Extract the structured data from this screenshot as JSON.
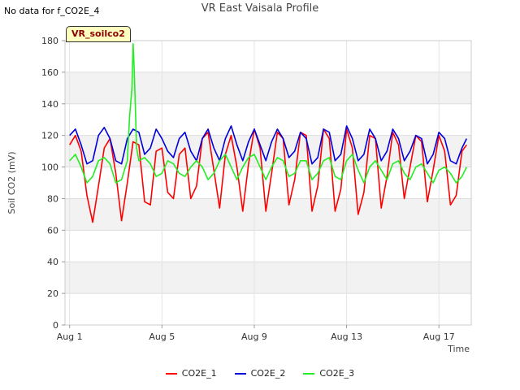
{
  "note": "No data for f_CO2E_4",
  "badge": "VR_soilco2",
  "chart_data": {
    "type": "line",
    "title": "VR East Vaisala Profile",
    "xlabel": "Time",
    "ylabel": "Soil CO2 (mV)",
    "xlim": [
      0.8,
      18.4
    ],
    "ylim": [
      0,
      180
    ],
    "yticks": [
      0,
      20,
      40,
      60,
      80,
      100,
      120,
      140,
      160,
      180
    ],
    "xticks": [
      1,
      5,
      9,
      13,
      17
    ],
    "xtick_labels": [
      "Aug 1",
      "Aug 5",
      "Aug 9",
      "Aug 13",
      "Aug 17"
    ],
    "x_unit": "day of August",
    "grid": true,
    "legend_position": "bottom",
    "series": [
      {
        "name": "CO2E_1",
        "color": "#ff0000",
        "x": [
          1.0,
          1.25,
          1.5,
          1.75,
          2.0,
          2.25,
          2.5,
          2.75,
          3.0,
          3.25,
          3.5,
          3.75,
          4.0,
          4.25,
          4.5,
          4.75,
          5.0,
          5.25,
          5.5,
          5.75,
          6.0,
          6.25,
          6.5,
          6.75,
          7.0,
          7.25,
          7.5,
          7.75,
          8.0,
          8.25,
          8.5,
          8.75,
          9.0,
          9.25,
          9.5,
          9.75,
          10.0,
          10.25,
          10.5,
          10.75,
          11.0,
          11.25,
          11.5,
          11.75,
          12.0,
          12.25,
          12.5,
          12.75,
          13.0,
          13.25,
          13.5,
          13.75,
          14.0,
          14.25,
          14.5,
          14.75,
          15.0,
          15.25,
          15.5,
          15.75,
          16.0,
          16.25,
          16.5,
          16.75,
          17.0,
          17.25,
          17.5,
          17.75,
          18.0,
          18.2
        ],
        "y": [
          114,
          120,
          110,
          82,
          65,
          88,
          112,
          118,
          96,
          66,
          90,
          116,
          114,
          78,
          76,
          110,
          112,
          84,
          80,
          108,
          112,
          80,
          88,
          118,
          122,
          98,
          74,
          108,
          120,
          100,
          72,
          102,
          124,
          112,
          72,
          96,
          122,
          118,
          76,
          92,
          122,
          120,
          72,
          88,
          124,
          118,
          72,
          86,
          124,
          112,
          70,
          84,
          120,
          118,
          74,
          94,
          122,
          114,
          80,
          100,
          120,
          116,
          78,
          98,
          120,
          110,
          76,
          82,
          110,
          114
        ]
      },
      {
        "name": "CO2E_2",
        "color": "#0000dd",
        "x": [
          1.0,
          1.25,
          1.5,
          1.75,
          2.0,
          2.25,
          2.5,
          2.75,
          3.0,
          3.25,
          3.5,
          3.75,
          4.0,
          4.25,
          4.5,
          4.75,
          5.0,
          5.25,
          5.5,
          5.75,
          6.0,
          6.25,
          6.5,
          6.75,
          7.0,
          7.25,
          7.5,
          7.75,
          8.0,
          8.25,
          8.5,
          8.75,
          9.0,
          9.25,
          9.5,
          9.75,
          10.0,
          10.25,
          10.5,
          10.75,
          11.0,
          11.25,
          11.5,
          11.75,
          12.0,
          12.25,
          12.5,
          12.75,
          13.0,
          13.25,
          13.5,
          13.75,
          14.0,
          14.25,
          14.5,
          14.75,
          15.0,
          15.25,
          15.5,
          15.75,
          16.0,
          16.25,
          16.5,
          16.75,
          17.0,
          17.25,
          17.5,
          17.75,
          18.0,
          18.2
        ],
        "y": [
          120,
          124,
          114,
          102,
          104,
          120,
          125,
          118,
          104,
          102,
          118,
          124,
          122,
          108,
          112,
          124,
          118,
          110,
          106,
          118,
          122,
          110,
          104,
          118,
          124,
          112,
          104,
          118,
          126,
          114,
          104,
          116,
          124,
          114,
          104,
          116,
          124,
          118,
          106,
          110,
          122,
          118,
          102,
          106,
          124,
          122,
          104,
          108,
          126,
          118,
          104,
          108,
          124,
          118,
          104,
          110,
          124,
          118,
          104,
          110,
          120,
          118,
          102,
          108,
          122,
          118,
          104,
          102,
          112,
          118
        ]
      },
      {
        "name": "CO2E_3",
        "color": "#22ee22",
        "x": [
          1.0,
          1.25,
          1.5,
          1.75,
          2.0,
          2.25,
          2.5,
          2.75,
          3.0,
          3.25,
          3.5,
          3.6,
          3.7,
          3.75,
          3.8,
          3.9,
          4.0,
          4.25,
          4.5,
          4.75,
          5.0,
          5.25,
          5.5,
          5.75,
          6.0,
          6.25,
          6.5,
          6.75,
          7.0,
          7.25,
          7.5,
          7.75,
          8.0,
          8.25,
          8.5,
          8.75,
          9.0,
          9.25,
          9.5,
          9.75,
          10.0,
          10.25,
          10.5,
          10.75,
          11.0,
          11.25,
          11.5,
          11.75,
          12.0,
          12.25,
          12.5,
          12.75,
          13.0,
          13.25,
          13.5,
          13.75,
          14.0,
          14.25,
          14.5,
          14.75,
          15.0,
          15.25,
          15.5,
          15.75,
          16.0,
          16.25,
          16.5,
          16.75,
          17.0,
          17.25,
          17.5,
          17.75,
          18.0,
          18.2
        ],
        "y": [
          104,
          108,
          100,
          90,
          94,
          104,
          106,
          102,
          90,
          92,
          104,
          132,
          150,
          178,
          162,
          112,
          104,
          106,
          102,
          94,
          96,
          104,
          102,
          96,
          94,
          100,
          104,
          100,
          92,
          96,
          104,
          108,
          100,
          92,
          100,
          106,
          108,
          100,
          92,
          100,
          106,
          104,
          94,
          96,
          104,
          104,
          92,
          96,
          104,
          106,
          94,
          92,
          104,
          108,
          98,
          90,
          100,
          104,
          98,
          92,
          102,
          104,
          96,
          92,
          100,
          102,
          96,
          90,
          98,
          100,
          96,
          90,
          94,
          100
        ]
      }
    ]
  }
}
